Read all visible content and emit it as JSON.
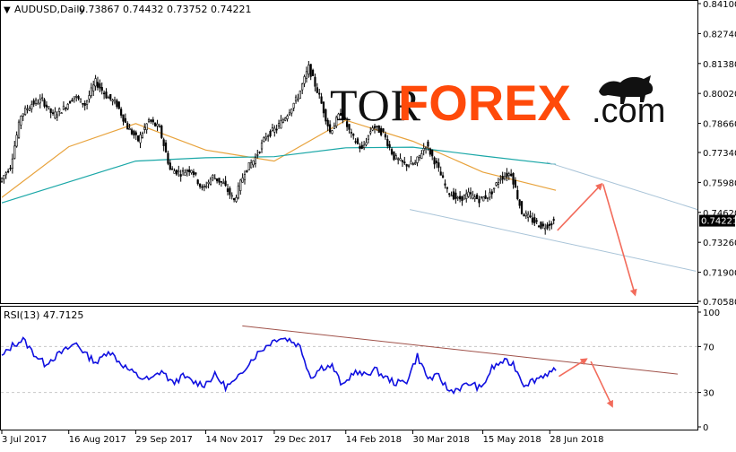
{
  "header": {
    "symbol": "AUDUSD,Daily",
    "quote": "0.73867 0.74432 0.73752 0.74221",
    "marker": "▼"
  },
  "logo": {
    "tor": "TOR",
    "forex": "FOREX",
    "suffix": ".com"
  },
  "rsi_header": "RSI(13) 47.7125",
  "current_price": "0.74221",
  "colors": {
    "bull": "#000000",
    "bear": "#000000",
    "ma_orange": "#E8A33D",
    "ma_teal": "#1AA7A7",
    "rsi_line": "#1010E0",
    "arrow": "#F26B5B",
    "channel": "#A9C4D8",
    "rsi_trend": "#A0524A",
    "logo_dark": "#111111",
    "logo_orange": "#FF4A0A"
  },
  "chart_data": [
    {
      "type": "candlestick",
      "title": "AUDUSD,Daily",
      "ylim": [
        0.7058,
        0.841
      ],
      "y_ticks": [
        "0.84100",
        "0.82740",
        "0.81380",
        "0.80020",
        "0.78660",
        "0.77340",
        "0.75980",
        "0.74620",
        "0.73260",
        "0.71900",
        "0.70580"
      ],
      "x_ticks": [
        "3 Jul 2017",
        "16 Aug 2017",
        "29 Sep 2017",
        "14 Nov 2017",
        "29 Dec 2017",
        "14 Feb 2018",
        "30 Mar 2018",
        "15 May 2018",
        "28 Jun 2018"
      ],
      "x_range": [
        "3 Jul 2017",
        "3 Oct 2018"
      ],
      "close_series": [
        [
          "3 Jul 2017",
          0.7602
        ],
        [
          "10 Jul 2017",
          0.7672
        ],
        [
          "17 Jul 2017",
          0.7904
        ],
        [
          "24 Jul 2017",
          0.7955
        ],
        [
          "31 Jul 2017",
          0.7972
        ],
        [
          "7 Aug 2017",
          0.7902
        ],
        [
          "14 Aug 2017",
          0.7935
        ],
        [
          "21 Aug 2017",
          0.799
        ],
        [
          "28 Aug 2017",
          0.7951
        ],
        [
          "4 Sep 2017",
          0.8055
        ],
        [
          "11 Sep 2017",
          0.7992
        ],
        [
          "18 Sep 2017",
          0.7952
        ],
        [
          "25 Sep 2017",
          0.7848
        ],
        [
          "2 Oct 2017",
          0.7789
        ],
        [
          "9 Oct 2017",
          0.788
        ],
        [
          "16 Oct 2017",
          0.7843
        ],
        [
          "23 Oct 2017",
          0.7657
        ],
        [
          "30 Oct 2017",
          0.7641
        ],
        [
          "6 Nov 2017",
          0.766
        ],
        [
          "13 Nov 2017",
          0.7565
        ],
        [
          "20 Nov 2017",
          0.7625
        ],
        [
          "27 Nov 2017",
          0.759
        ],
        [
          "4 Dec 2017",
          0.7515
        ],
        [
          "11 Dec 2017",
          0.7648
        ],
        [
          "18 Dec 2017",
          0.771
        ],
        [
          "25 Dec 2017",
          0.781
        ],
        [
          "1 Jan 2018",
          0.7845
        ],
        [
          "8 Jan 2018",
          0.791
        ],
        [
          "15 Jan 2018",
          0.7988
        ],
        [
          "22 Jan 2018",
          0.812
        ],
        [
          "29 Jan 2018",
          0.7988
        ],
        [
          "5 Feb 2018",
          0.7827
        ],
        [
          "12 Feb 2018",
          0.7915
        ],
        [
          "19 Feb 2018",
          0.7812
        ],
        [
          "26 Feb 2018",
          0.7745
        ],
        [
          "5 Mar 2018",
          0.7853
        ],
        [
          "12 Mar 2018",
          0.7822
        ],
        [
          "19 Mar 2018",
          0.7712
        ],
        [
          "26 Mar 2018",
          0.7679
        ],
        [
          "2 Apr 2018",
          0.7683
        ],
        [
          "9 Apr 2018",
          0.7771
        ],
        [
          "16 Apr 2018",
          0.7677
        ],
        [
          "23 Apr 2018",
          0.756
        ],
        [
          "30 Apr 2018",
          0.752
        ],
        [
          "7 May 2018",
          0.7543
        ],
        [
          "14 May 2018",
          0.752
        ],
        [
          "21 May 2018",
          0.7542
        ],
        [
          "28 May 2018",
          0.762
        ],
        [
          "4 Jun 2018",
          0.764
        ],
        [
          "11 Jun 2018",
          0.7462
        ],
        [
          "18 Jun 2018",
          0.7425
        ],
        [
          "25 Jun 2018",
          0.7395
        ],
        [
          "2 Jul 2018",
          0.7422
        ]
      ],
      "moving_averages": [
        {
          "color": "#E8A33D",
          "start": "3 Jul 2017",
          "end": "2 Jul 2018",
          "path": [
            [
              "3 Jul 2017",
              0.753
            ],
            [
              "16 Aug 2017",
              0.776
            ],
            [
              "29 Sep 2017",
              0.7865
            ],
            [
              "14 Nov 2017",
              0.7745
            ],
            [
              "29 Dec 2017",
              0.7695
            ],
            [
              "14 Feb 2018",
              0.788
            ],
            [
              "30 Mar 2018",
              0.7785
            ],
            [
              "15 May 2018",
              0.7645
            ],
            [
              "2 Jul 2018",
              0.7562
            ]
          ]
        },
        {
          "color": "#1AA7A7",
          "start": "3 Jul 2017",
          "end": "2 Jul 2018",
          "path": [
            [
              "3 Jul 2017",
              0.7505
            ],
            [
              "16 Aug 2017",
              0.76
            ],
            [
              "29 Sep 2017",
              0.7695
            ],
            [
              "14 Nov 2017",
              0.771
            ],
            [
              "29 Dec 2017",
              0.7715
            ],
            [
              "14 Feb 2018",
              0.7755
            ],
            [
              "30 Mar 2018",
              0.7758
            ],
            [
              "15 May 2018",
              0.7718
            ],
            [
              "2 Jul 2018",
              0.768
            ]
          ]
        }
      ],
      "annotations": {
        "channel_upper": [
          [
            "26 Jun 2018",
            0.769
          ],
          [
            "3 Oct 2018",
            0.7475
          ]
        ],
        "channel_lower": [
          [
            "28 Mar 2018",
            0.7475
          ],
          [
            "2 Oct 2018",
            0.7195
          ]
        ],
        "arrow_up": [
          [
            "3 Jul 2018",
            0.738
          ],
          [
            "1 Aug 2018",
            0.759
          ]
        ],
        "arrow_down": [
          [
            "2 Aug 2018",
            0.759
          ],
          [
            "23 Aug 2018",
            0.7088
          ]
        ]
      }
    },
    {
      "type": "line",
      "title": "RSI(13) 47.7125",
      "ylim": [
        0,
        100
      ],
      "y_ticks": [
        "100",
        "70",
        "30",
        "0"
      ],
      "values": [
        61,
        71,
        76,
        64,
        55,
        61,
        67,
        73,
        62,
        56,
        67,
        57,
        49,
        43,
        41,
        49,
        38,
        44,
        39,
        37,
        45,
        35,
        40,
        54,
        64,
        72,
        78,
        76,
        70,
        43,
        52,
        53,
        35,
        48,
        45,
        50,
        43,
        38,
        40,
        62,
        42,
        44,
        31,
        34,
        38,
        33,
        51,
        57,
        55,
        37,
        41,
        46,
        49
      ],
      "annotations": {
        "trendline": [
          [
            "8 Dec 2017",
            88
          ],
          [
            "20 Sep 2018",
            46
          ]
        ],
        "arrow_up": [
          [
            "4 Jul 2018",
            44
          ],
          [
            "22 Jul 2018",
            59
          ]
        ],
        "arrow_down": [
          [
            "25 Jul 2018",
            57
          ],
          [
            "8 Aug 2018",
            18
          ]
        ]
      }
    }
  ]
}
